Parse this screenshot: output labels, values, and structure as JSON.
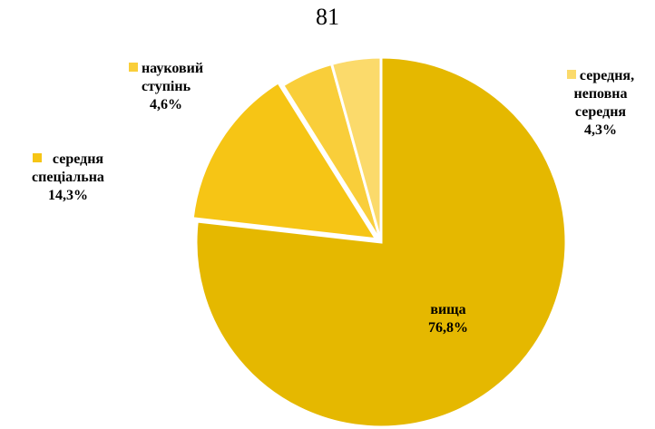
{
  "page_number": "81",
  "chart_data": {
    "type": "pie",
    "title": "",
    "slices": [
      {
        "label_lines": [
          "вища"
        ],
        "value_label": "76,8%",
        "value": 76.8,
        "color": "#E5B800"
      },
      {
        "label_lines": [
          "середня",
          "спеціальна"
        ],
        "value_label": "14,3%",
        "value": 14.3,
        "color": "#F6C515"
      },
      {
        "label_lines": [
          "науковий",
          "ступінь"
        ],
        "value_label": "4,6%",
        "value": 4.6,
        "color": "#F9CE3A"
      },
      {
        "label_lines": [
          "середня,",
          "неповна",
          "середня"
        ],
        "value_label": "4,3%",
        "value": 4.3,
        "color": "#FBDA6B"
      }
    ],
    "start_angle_deg": 0,
    "direction": "counterclockwise-from-top-for-small-slices",
    "legend": "labels-beside-slices"
  }
}
